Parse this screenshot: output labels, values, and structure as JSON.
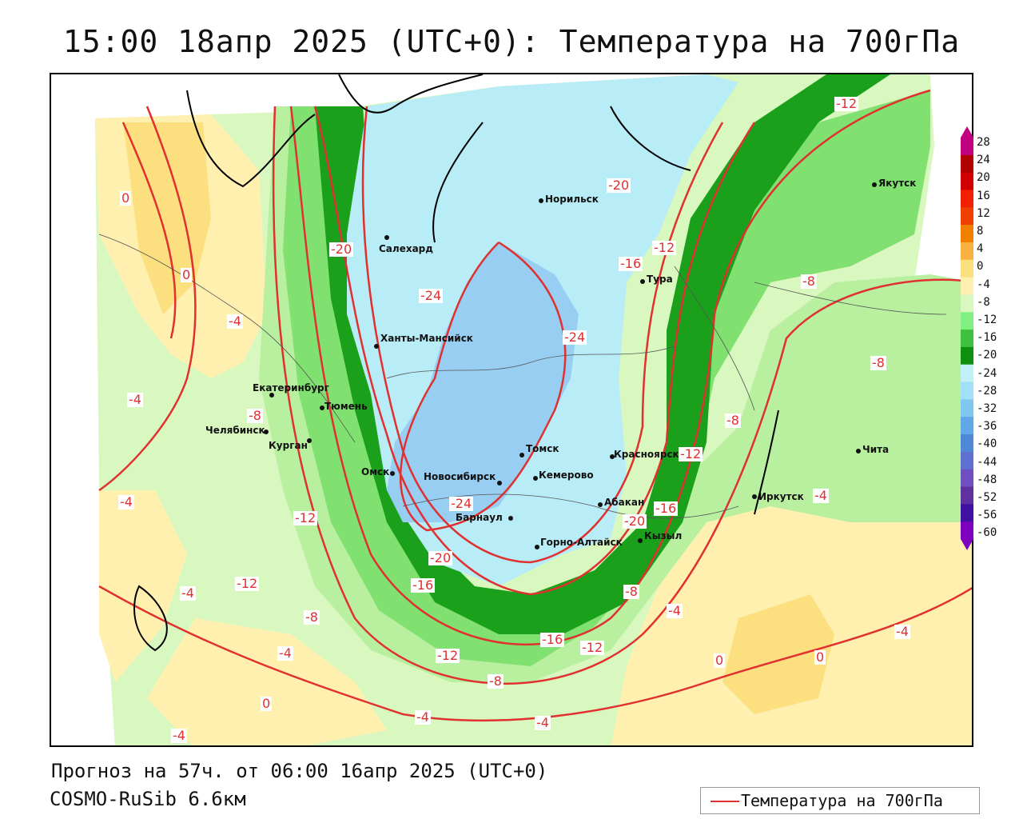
{
  "title": "15:00 18апр 2025 (UTC+0): Температура на 700гПа",
  "footer": {
    "forecast": "Прогноз на 57ч. от 06:00 16апр 2025 (UTC+0)",
    "model": "COSMO-RuSib 6.6км"
  },
  "legend": {
    "label": "Температура на 700гПа",
    "line_color": "#e03030"
  },
  "colorbar": {
    "levels": [
      "28",
      "24",
      "20",
      "16",
      "12",
      "8",
      "4",
      "0",
      "-4",
      "-8",
      "-12",
      "-16",
      "-20",
      "-24",
      "-28",
      "-32",
      "-36",
      "-40",
      "-44",
      "-48",
      "-52",
      "-56",
      "-60"
    ],
    "colors": [
      "#c00080",
      "#b00000",
      "#d00000",
      "#f02000",
      "#f04000",
      "#f08000",
      "#f8b040",
      "#fce080",
      "#fff0b0",
      "#d8f8c0",
      "#80f080",
      "#40c040",
      "#109010",
      "#c0f0f8",
      "#a0e0f8",
      "#80c8f0",
      "#60a8e8",
      "#5088d8",
      "#6070d0",
      "#7050c0",
      "#6030a0",
      "#4010a0",
      "#8000c0"
    ]
  },
  "cities": [
    {
      "name": "Норильск"
    },
    {
      "name": "Якутск"
    },
    {
      "name": "Салехард"
    },
    {
      "name": "Тура"
    },
    {
      "name": "Ханты-Мансийск"
    },
    {
      "name": "Екатеринбург"
    },
    {
      "name": "Тюмень"
    },
    {
      "name": "Челябинск"
    },
    {
      "name": "Курган"
    },
    {
      "name": "Томск"
    },
    {
      "name": "Красноярск"
    },
    {
      "name": "Омск"
    },
    {
      "name": "Новосибирск"
    },
    {
      "name": "Кемерово"
    },
    {
      "name": "Абакан"
    },
    {
      "name": "Барнаул"
    },
    {
      "name": "Горно-Алтайск"
    },
    {
      "name": "Кызыл"
    },
    {
      "name": "Иркутск"
    },
    {
      "name": "Чита"
    }
  ],
  "isotherm_labels": [
    "-12",
    "-20",
    "0",
    "-20",
    "-24",
    "-12",
    "-16",
    "-8",
    "0",
    "-24",
    "-4",
    "-8",
    "-4",
    "-8",
    "-8",
    "-12",
    "-12",
    "-4",
    "-16",
    "-24",
    "-20",
    "-12",
    "-20",
    "-4",
    "-16",
    "-8",
    "-4",
    "-4",
    "-8",
    "-4",
    "-16",
    "-12",
    "-12",
    "-4",
    "0",
    "0",
    "-8",
    "0",
    "-4",
    "-4",
    "-4"
  ]
}
